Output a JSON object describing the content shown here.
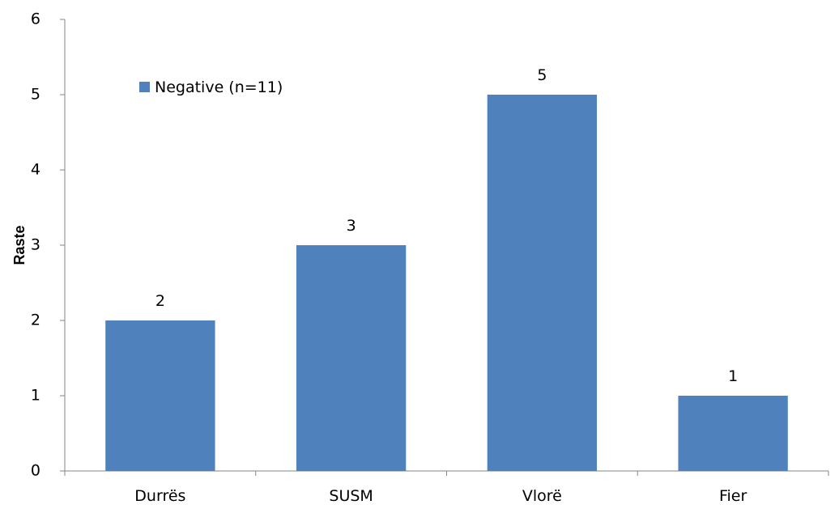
{
  "chart_data": {
    "type": "bar",
    "categories": [
      "Durrës",
      "SUSM",
      "Vlorë",
      "Fier"
    ],
    "series": [
      {
        "name": "Negative (n=11)",
        "values": [
          2,
          3,
          5,
          1
        ],
        "color": "#4F81BD"
      }
    ],
    "data_labels": [
      "2",
      "3",
      "5",
      "1"
    ],
    "xlabel": "",
    "ylabel": "Raste",
    "ylim": [
      0,
      6
    ],
    "yticks": [
      "0",
      "1",
      "2",
      "3",
      "4",
      "5",
      "6"
    ],
    "grid": false,
    "legend_position": "top-left"
  }
}
